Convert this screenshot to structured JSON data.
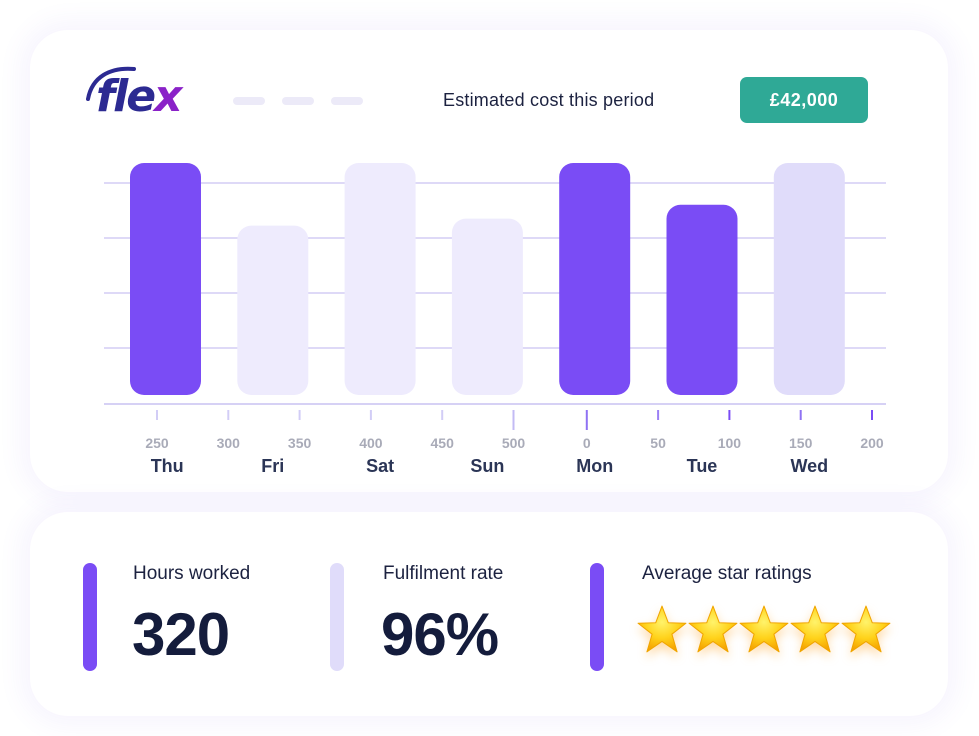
{
  "brand": {
    "logo_main": "fle",
    "logo_accent": "x"
  },
  "header": {
    "cost_label": "Estimated cost this period",
    "cost_value": "£42,000"
  },
  "colors": {
    "dark_purple": "#7a4cf5",
    "light_purple": "#e0dcfa",
    "lighter_purple": "#eeebfd",
    "teal": "#2fa996"
  },
  "chart_data": {
    "type": "bar",
    "categories": [
      "Thu",
      "Fri",
      "Sat",
      "Sun",
      "Mon",
      "Tue",
      "Wed"
    ],
    "values": [
      100,
      73,
      100,
      76,
      100,
      82,
      100
    ],
    "bar_shade": [
      "dark",
      "lighter",
      "lighter",
      "lighter",
      "dark",
      "dark",
      "light"
    ],
    "ylim": [
      0,
      100
    ],
    "axis_ticks": [
      "250",
      "300",
      "350",
      "400",
      "450",
      "500",
      "0",
      "50",
      "100",
      "150",
      "200"
    ],
    "grid": true
  },
  "metrics": [
    {
      "title": "Hours worked",
      "value": "320"
    },
    {
      "title": "Fulfilment rate",
      "value": "96%"
    },
    {
      "title": "Average star ratings",
      "rating": 5,
      "max": 5
    }
  ]
}
